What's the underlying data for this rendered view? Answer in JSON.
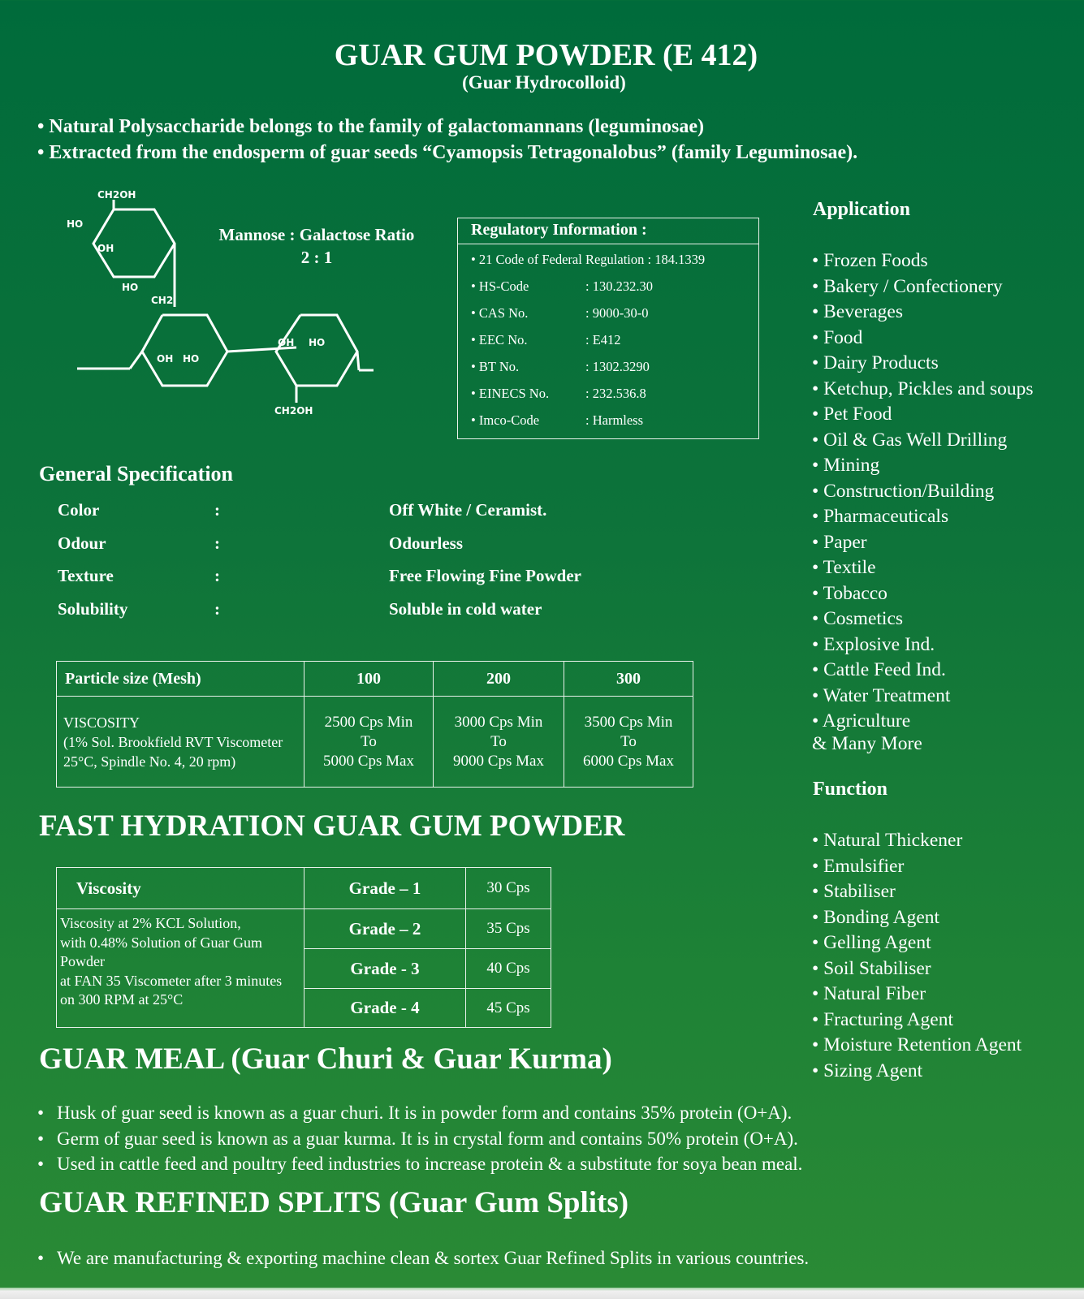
{
  "header": {
    "title": "GUAR GUM POWDER (E 412)",
    "subtitle": "(Guar Hydrocolloid)"
  },
  "intro": [
    "• Natural Polysaccharide belongs to the family of galactomannans (leguminosae)",
    "• Extracted from the endosperm of guar seeds “Cyamopsis Tetragonalobus” (family Leguminosae)."
  ],
  "structure": {
    "labels": {
      "ch2oh_top": "CH2OH",
      "ch2": "CH2",
      "ch2oh_bottom": "CH2OH"
    }
  },
  "ratio": {
    "label": "Mannose : Galactose Ratio",
    "value": "2 : 1"
  },
  "regulatory": {
    "title": "Regulatory Information :",
    "cfr": "• 21 Code of Federal Regulation : 184.1339",
    "rows": [
      {
        "k": "• HS-Code",
        "v": ": 130.232.30"
      },
      {
        "k": "• CAS No.",
        "v": ": 9000-30-0"
      },
      {
        "k": "• EEC No.",
        "v": ": E412"
      },
      {
        "k": "• BT No.",
        "v": ": 1302.3290"
      },
      {
        "k": "• EINECS No.",
        "v": ": 232.536.8"
      },
      {
        "k": "• Imco-Code",
        "v": ": Harmless"
      }
    ]
  },
  "application": {
    "title": "Application",
    "items": [
      "• Frozen Foods",
      "• Bakery / Confectionery",
      "• Beverages",
      "• Food",
      "• Dairy Products",
      "• Ketchup, Pickles and soups",
      "• Pet Food",
      "• Oil & Gas Well Drilling",
      "• Mining",
      "• Construction/Building",
      "• Pharmaceuticals",
      "• Paper",
      "• Textile",
      "• Tobacco",
      "• Cosmetics",
      "• Explosive Ind.",
      "• Cattle Feed Ind.",
      "• Water Treatment",
      "• Agriculture"
    ],
    "more": "& Many More"
  },
  "function": {
    "title": "Function",
    "items": [
      "• Natural Thickener",
      "• Emulsifier",
      "• Stabiliser",
      "• Bonding Agent",
      "• Gelling Agent",
      "• Soil Stabiliser",
      "• Natural Fiber",
      "• Fracturing Agent",
      "• Moisture Retention Agent",
      "• Sizing Agent"
    ]
  },
  "general": {
    "title": "General Specification",
    "rows": [
      {
        "k": "Color",
        "sep": ":",
        "v": "Off White / Ceramist."
      },
      {
        "k": "Odour",
        "sep": ":",
        "v": "Odourless"
      },
      {
        "k": "Texture",
        "sep": ":",
        "v": "Free Flowing Fine Powder"
      },
      {
        "k": "Solubility",
        "sep": ":",
        "v": "Soluble in cold water"
      }
    ]
  },
  "particle_table": {
    "headers": [
      "Particle size (Mesh)",
      "100",
      "200",
      "300"
    ],
    "row_label": [
      "VISCOSITY",
      "(1% Sol. Brookfield RVT Viscometer",
      "25°C, Spindle No. 4, 20 rpm)"
    ],
    "cells": [
      [
        "2500 Cps Min",
        "To",
        "5000 Cps Max"
      ],
      [
        "3000 Cps Min",
        "To",
        "9000 Cps Max"
      ],
      [
        "3500 Cps Min",
        "To",
        "6000 Cps Max"
      ]
    ]
  },
  "fast": {
    "title": "FAST HYDRATION GUAR GUM POWDER",
    "header": "Viscosity",
    "desc": [
      "Viscosity at 2% KCL Solution,",
      "with 0.48% Solution of Guar Gum",
      "Powder",
      "at FAN 35 Viscometer after 3 minutes",
      "on  300 RPM at 25°C"
    ],
    "grades": [
      {
        "g": "Grade – 1",
        "v": "30 Cps"
      },
      {
        "g": "Grade – 2",
        "v": "35 Cps"
      },
      {
        "g": "Grade - 3",
        "v": "40 Cps"
      },
      {
        "g": "Grade - 4",
        "v": "45 Cps"
      }
    ]
  },
  "meal": {
    "title": "GUAR MEAL (Guar Churi & Guar Kurma)",
    "items": [
      "Husk of guar seed is known as a guar churi. It is in powder form and contains 35% protein (O+A).",
      "Germ of guar seed is known as a guar kurma. It is in crystal form and contains 50% protein (O+A).",
      "Used in cattle feed and poultry feed industries to increase protein & a substitute for soya bean meal."
    ]
  },
  "splits": {
    "title": "GUAR REFINED SPLITS (Guar Gum Splits)",
    "items": [
      "We are manufacturing & exporting machine clean & sortex Guar Refined Splits in various countries."
    ]
  }
}
